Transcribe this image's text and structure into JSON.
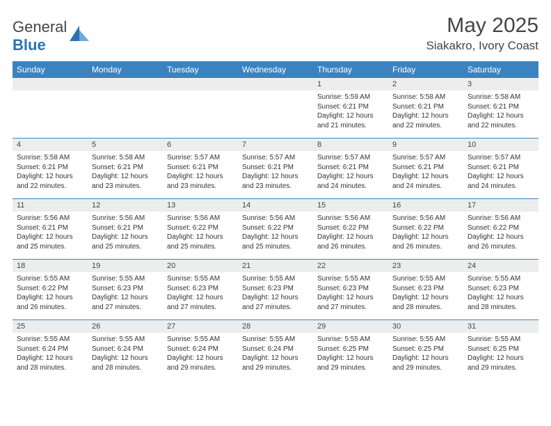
{
  "brand": {
    "word1": "General",
    "word2": "Blue"
  },
  "title": "May 2025",
  "location": "Siakakro, Ivory Coast",
  "colors": {
    "header_bg": "#3b83c0",
    "header_text": "#ffffff",
    "daynum_bg": "#eceeee",
    "week_divider": "#3b83c0",
    "body_text": "#333333",
    "title_text": "#444444"
  },
  "day_names": [
    "Sunday",
    "Monday",
    "Tuesday",
    "Wednesday",
    "Thursday",
    "Friday",
    "Saturday"
  ],
  "weeks": [
    [
      {
        "n": "",
        "sr": "",
        "ss": "",
        "dl": ""
      },
      {
        "n": "",
        "sr": "",
        "ss": "",
        "dl": ""
      },
      {
        "n": "",
        "sr": "",
        "ss": "",
        "dl": ""
      },
      {
        "n": "",
        "sr": "",
        "ss": "",
        "dl": ""
      },
      {
        "n": "1",
        "sr": "5:59 AM",
        "ss": "6:21 PM",
        "dl": "12 hours and 21 minutes."
      },
      {
        "n": "2",
        "sr": "5:58 AM",
        "ss": "6:21 PM",
        "dl": "12 hours and 22 minutes."
      },
      {
        "n": "3",
        "sr": "5:58 AM",
        "ss": "6:21 PM",
        "dl": "12 hours and 22 minutes."
      }
    ],
    [
      {
        "n": "4",
        "sr": "5:58 AM",
        "ss": "6:21 PM",
        "dl": "12 hours and 22 minutes."
      },
      {
        "n": "5",
        "sr": "5:58 AM",
        "ss": "6:21 PM",
        "dl": "12 hours and 23 minutes."
      },
      {
        "n": "6",
        "sr": "5:57 AM",
        "ss": "6:21 PM",
        "dl": "12 hours and 23 minutes."
      },
      {
        "n": "7",
        "sr": "5:57 AM",
        "ss": "6:21 PM",
        "dl": "12 hours and 23 minutes."
      },
      {
        "n": "8",
        "sr": "5:57 AM",
        "ss": "6:21 PM",
        "dl": "12 hours and 24 minutes."
      },
      {
        "n": "9",
        "sr": "5:57 AM",
        "ss": "6:21 PM",
        "dl": "12 hours and 24 minutes."
      },
      {
        "n": "10",
        "sr": "5:57 AM",
        "ss": "6:21 PM",
        "dl": "12 hours and 24 minutes."
      }
    ],
    [
      {
        "n": "11",
        "sr": "5:56 AM",
        "ss": "6:21 PM",
        "dl": "12 hours and 25 minutes."
      },
      {
        "n": "12",
        "sr": "5:56 AM",
        "ss": "6:21 PM",
        "dl": "12 hours and 25 minutes."
      },
      {
        "n": "13",
        "sr": "5:56 AM",
        "ss": "6:22 PM",
        "dl": "12 hours and 25 minutes."
      },
      {
        "n": "14",
        "sr": "5:56 AM",
        "ss": "6:22 PM",
        "dl": "12 hours and 25 minutes."
      },
      {
        "n": "15",
        "sr": "5:56 AM",
        "ss": "6:22 PM",
        "dl": "12 hours and 26 minutes."
      },
      {
        "n": "16",
        "sr": "5:56 AM",
        "ss": "6:22 PM",
        "dl": "12 hours and 26 minutes."
      },
      {
        "n": "17",
        "sr": "5:56 AM",
        "ss": "6:22 PM",
        "dl": "12 hours and 26 minutes."
      }
    ],
    [
      {
        "n": "18",
        "sr": "5:55 AM",
        "ss": "6:22 PM",
        "dl": "12 hours and 26 minutes."
      },
      {
        "n": "19",
        "sr": "5:55 AM",
        "ss": "6:23 PM",
        "dl": "12 hours and 27 minutes."
      },
      {
        "n": "20",
        "sr": "5:55 AM",
        "ss": "6:23 PM",
        "dl": "12 hours and 27 minutes."
      },
      {
        "n": "21",
        "sr": "5:55 AM",
        "ss": "6:23 PM",
        "dl": "12 hours and 27 minutes."
      },
      {
        "n": "22",
        "sr": "5:55 AM",
        "ss": "6:23 PM",
        "dl": "12 hours and 27 minutes."
      },
      {
        "n": "23",
        "sr": "5:55 AM",
        "ss": "6:23 PM",
        "dl": "12 hours and 28 minutes."
      },
      {
        "n": "24",
        "sr": "5:55 AM",
        "ss": "6:23 PM",
        "dl": "12 hours and 28 minutes."
      }
    ],
    [
      {
        "n": "25",
        "sr": "5:55 AM",
        "ss": "6:24 PM",
        "dl": "12 hours and 28 minutes."
      },
      {
        "n": "26",
        "sr": "5:55 AM",
        "ss": "6:24 PM",
        "dl": "12 hours and 28 minutes."
      },
      {
        "n": "27",
        "sr": "5:55 AM",
        "ss": "6:24 PM",
        "dl": "12 hours and 29 minutes."
      },
      {
        "n": "28",
        "sr": "5:55 AM",
        "ss": "6:24 PM",
        "dl": "12 hours and 29 minutes."
      },
      {
        "n": "29",
        "sr": "5:55 AM",
        "ss": "6:25 PM",
        "dl": "12 hours and 29 minutes."
      },
      {
        "n": "30",
        "sr": "5:55 AM",
        "ss": "6:25 PM",
        "dl": "12 hours and 29 minutes."
      },
      {
        "n": "31",
        "sr": "5:55 AM",
        "ss": "6:25 PM",
        "dl": "12 hours and 29 minutes."
      }
    ]
  ],
  "labels": {
    "sunrise": "Sunrise:",
    "sunset": "Sunset:",
    "daylight": "Daylight:"
  }
}
